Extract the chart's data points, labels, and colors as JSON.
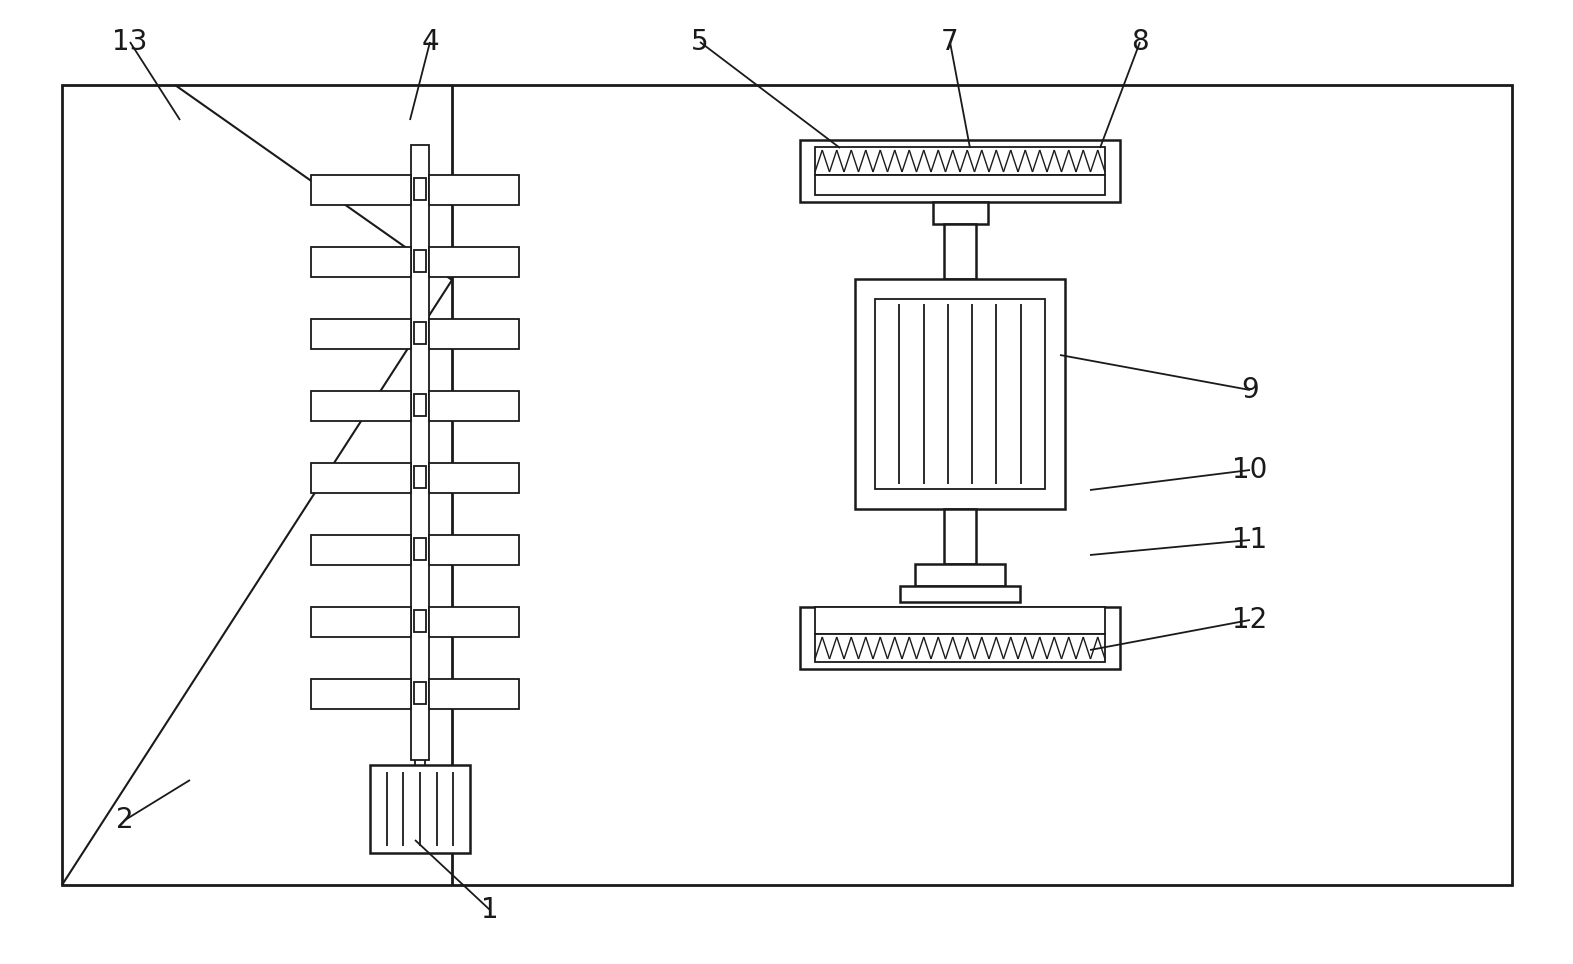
{
  "bg": "#ffffff",
  "lc": "#1a1a1a",
  "lw_main": 1.8,
  "lw_detail": 1.3,
  "lw_thin": 1.0,
  "fig_w": 15.73,
  "fig_h": 9.64,
  "labels": [
    [
      "1",
      490,
      910,
      415,
      840
    ],
    [
      "2",
      125,
      820,
      190,
      780
    ],
    [
      "4",
      430,
      42,
      410,
      120
    ],
    [
      "5",
      700,
      42,
      840,
      148
    ],
    [
      "7",
      950,
      42,
      970,
      148
    ],
    [
      "8",
      1140,
      42,
      1100,
      148
    ],
    [
      "9",
      1250,
      390,
      1060,
      355
    ],
    [
      "10",
      1250,
      470,
      1090,
      490
    ],
    [
      "11",
      1250,
      540,
      1090,
      555
    ],
    [
      "12",
      1250,
      620,
      1090,
      650
    ],
    [
      "13",
      130,
      42,
      180,
      120
    ]
  ]
}
